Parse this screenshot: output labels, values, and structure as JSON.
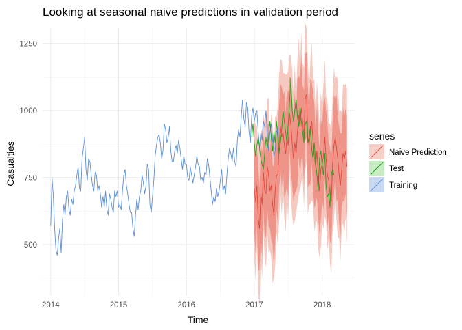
{
  "chart_data": {
    "type": "line",
    "title": "Looking at seasonal naive predictions in validation period",
    "xlabel": "Time",
    "ylabel": "Casualties",
    "xlim": [
      2013.88,
      2018.48
    ],
    "ylim": [
      310,
      1310
    ],
    "x_ticks": [
      2014,
      2015,
      2016,
      2017,
      2018
    ],
    "x_tick_labels": [
      "2014",
      "2015",
      "2016",
      "2017",
      "2018"
    ],
    "y_ticks": [
      500,
      750,
      1000,
      1250
    ],
    "y_tick_labels": [
      "500",
      "750",
      "1000",
      "1250"
    ],
    "grid": true,
    "legend": {
      "title": "series",
      "position": "right",
      "entries": [
        "Naive Prediction",
        "Test",
        "Training"
      ]
    },
    "colors": {
      "Naive Prediction": "#e0483c",
      "Test": "#1aa51a",
      "Training": "#5b8ed6",
      "band80": "#ee9489",
      "band95": "#f5c8c0",
      "legend_naive_fill": "#f7cfc9",
      "legend_test_fill": "#c7ecc4",
      "legend_training_fill": "#c9d8f2"
    },
    "series": [
      {
        "name": "Training",
        "start": 2014.0,
        "step": 0.0192307692,
        "values": [
          570,
          750,
          680,
          560,
          480,
          460,
          520,
          560,
          470,
          590,
          650,
          610,
          680,
          700,
          630,
          610,
          670,
          650,
          700,
          720,
          760,
          790,
          710,
          700,
          820,
          860,
          900,
          780,
          740,
          820,
          810,
          760,
          720,
          700,
          770,
          760,
          700,
          720,
          690,
          640,
          680,
          640,
          700,
          630,
          610,
          690,
          670,
          640,
          620,
          700,
          680,
          700,
          640,
          650,
          630,
          700,
          760,
          780,
          720,
          690,
          650,
          620,
          620,
          560,
          530,
          610,
          670,
          630,
          680,
          700,
          760,
          730,
          690,
          720,
          800,
          780,
          650,
          620,
          680,
          740,
          830,
          870,
          900,
          910,
          880,
          820,
          850,
          950,
          930,
          880,
          900,
          940,
          850,
          810,
          810,
          850,
          870,
          840,
          890,
          860,
          820,
          780,
          830,
          800,
          800,
          750,
          740,
          790,
          760,
          730,
          760,
          790,
          830,
          800,
          790,
          740,
          750,
          730,
          770,
          760,
          820,
          800,
          750,
          700,
          650,
          680,
          660,
          710,
          680,
          700,
          740,
          780,
          700,
          720,
          690,
          760,
          820,
          860,
          840,
          810,
          860,
          810,
          790,
          890,
          930,
          900,
          980,
          1040,
          970,
          940,
          1030,
          1010,
          920,
          880,
          980,
          1010,
          960,
          990,
          1000,
          920,
          860,
          920,
          890,
          960,
          940,
          1000,
          900,
          850,
          920,
          950,
          890,
          830,
          850,
          920,
          940,
          860
        ]
      },
      {
        "name": "Test",
        "start": 2016.9615,
        "step": 0.0192307692,
        "values": [
          900,
          950,
          880,
          830,
          870,
          900,
          860,
          820,
          800,
          780,
          840,
          900,
          860,
          900,
          960,
          900,
          850,
          920,
          880,
          960,
          900,
          840,
          880,
          930,
          1000,
          960,
          920,
          880,
          950,
          1030,
          1120,
          1000,
          960,
          1000,
          1040,
          980,
          940,
          1010,
          960,
          920,
          880,
          950,
          960,
          880,
          900,
          940,
          860,
          820,
          880,
          800,
          760,
          700,
          820,
          850,
          800,
          760,
          840,
          720,
          680,
          690,
          640,
          760,
          780,
          760
        ]
      },
      {
        "name": "Naive Prediction",
        "start": 2017.0,
        "step": 0.0192307692,
        "values": [
          710,
          660,
          720,
          600,
          560,
          690,
          650,
          770,
          700,
          690,
          790,
          760,
          700,
          720,
          650,
          610,
          700,
          760,
          760,
          860,
          940,
          900,
          920,
          870,
          840,
          900,
          870,
          990,
          950,
          880,
          820,
          880,
          840,
          920,
          980,
          940,
          1010,
          960,
          900,
          1050,
          1060,
          900,
          870,
          920,
          960,
          890,
          830,
          790,
          850,
          760,
          700,
          780,
          800,
          830,
          900,
          820,
          760,
          740,
          690,
          660,
          800,
          870,
          900,
          860,
          820,
          760,
          720,
          780,
          840,
          820,
          850,
          790
        ]
      }
    ],
    "bands": {
      "start": 2017.0,
      "step": 0.0192307692,
      "half_width_80": 160,
      "half_width_95": 250,
      "extra_noise_80": [
        0,
        30,
        -20,
        40,
        -10,
        20,
        35,
        -25,
        15,
        0
      ],
      "extra_noise_95": [
        0,
        40,
        -30,
        20,
        45,
        -15,
        30,
        -35,
        10,
        25
      ]
    }
  }
}
